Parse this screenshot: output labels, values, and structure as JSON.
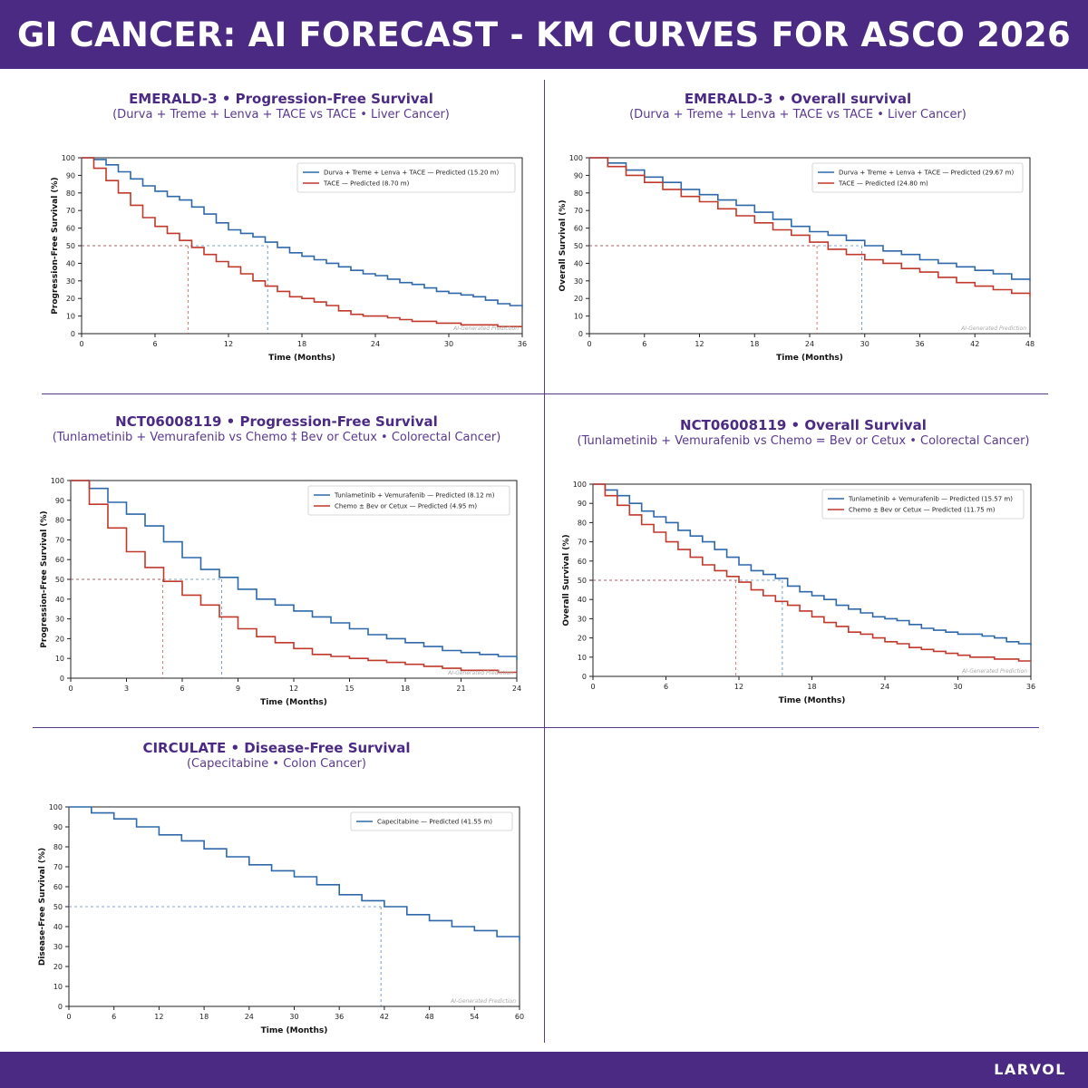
{
  "header": {
    "title": "GI CANCER: AI FORECAST - KM CURVES FOR ASCO 2026"
  },
  "footer": {
    "brand": "LARVOL"
  },
  "colors": {
    "brand": "#4b2a83",
    "series_blue": "#2e68aa",
    "series_red": "#c0392b"
  },
  "watermark": "AI-Generated Prediction",
  "chart_data": [
    {
      "id": "emerald3-pfs",
      "type": "line",
      "title": "EMERALD-3 • Progression-Free Survival",
      "subtitle": "(Durva + Treme + Lenva + TACE vs TACE • Liver Cancer)",
      "xlabel": "Time (Months)",
      "ylabel": "Progression-Free Survival (%)",
      "xlim": [
        0,
        36
      ],
      "ylim": [
        0,
        100
      ],
      "xticks": [
        0,
        6,
        12,
        18,
        24,
        30,
        36
      ],
      "yticks": [
        0,
        10,
        20,
        30,
        40,
        50,
        60,
        70,
        80,
        90,
        100
      ],
      "legend_position": "top-right",
      "series": [
        {
          "name": "Durva + Treme + Lenva + TACE — Predicted (15.20 m)",
          "color": "#2e68aa",
          "median": 15.2,
          "x": [
            0,
            1,
            2,
            3,
            4,
            5,
            6,
            7,
            8,
            9,
            10,
            11,
            12,
            13,
            14,
            15,
            16,
            17,
            18,
            19,
            20,
            21,
            22,
            23,
            24,
            25,
            26,
            27,
            28,
            29,
            30,
            31,
            32,
            33,
            34,
            35,
            36
          ],
          "y": [
            100,
            99,
            96,
            92,
            88,
            84,
            81,
            78,
            76,
            72,
            68,
            63,
            59,
            57,
            55,
            52,
            49,
            46,
            44,
            42,
            40,
            38,
            36,
            34,
            33,
            31,
            29,
            28,
            26,
            24,
            23,
            22,
            21,
            19,
            17,
            16,
            15
          ]
        },
        {
          "name": "TACE — Predicted (8.70 m)",
          "color": "#c0392b",
          "median": 8.7,
          "x": [
            0,
            1,
            2,
            3,
            4,
            5,
            6,
            7,
            8,
            9,
            10,
            11,
            12,
            13,
            14,
            15,
            16,
            17,
            18,
            19,
            20,
            21,
            22,
            23,
            24,
            25,
            26,
            27,
            28,
            29,
            30,
            31,
            32,
            33,
            34,
            35,
            36
          ],
          "y": [
            100,
            94,
            87,
            80,
            73,
            66,
            61,
            57,
            53,
            49,
            45,
            41,
            38,
            34,
            30,
            27,
            24,
            21,
            20,
            18,
            16,
            13,
            11,
            10,
            10,
            9,
            8,
            7,
            7,
            6,
            6,
            5,
            5,
            5,
            4,
            4,
            4
          ]
        }
      ]
    },
    {
      "id": "emerald3-os",
      "type": "line",
      "title": "EMERALD-3 • Overall survival",
      "subtitle": "(Durva + Treme + Lenva + TACE vs TACE • Liver Cancer)",
      "xlabel": "Time (Months)",
      "ylabel": "Overall Survival (%)",
      "xlim": [
        0,
        48
      ],
      "ylim": [
        0,
        100
      ],
      "xticks": [
        0,
        6,
        12,
        18,
        24,
        30,
        36,
        42,
        48
      ],
      "yticks": [
        0,
        10,
        20,
        30,
        40,
        50,
        60,
        70,
        80,
        90,
        100
      ],
      "legend_position": "top-right",
      "series": [
        {
          "name": "Durva + Treme + Lenva + TACE — Predicted (29.67 m)",
          "color": "#2e68aa",
          "median": 29.67,
          "x": [
            0,
            2,
            4,
            6,
            8,
            10,
            12,
            14,
            16,
            18,
            20,
            22,
            24,
            26,
            28,
            30,
            32,
            34,
            36,
            38,
            40,
            42,
            44,
            46,
            48
          ],
          "y": [
            100,
            97,
            93,
            89,
            86,
            82,
            79,
            76,
            73,
            69,
            65,
            61,
            58,
            56,
            53,
            50,
            47,
            45,
            42,
            40,
            38,
            36,
            34,
            31,
            30
          ]
        },
        {
          "name": "TACE — Predicted (24.80 m)",
          "color": "#c0392b",
          "median": 24.8,
          "x": [
            0,
            2,
            4,
            6,
            8,
            10,
            12,
            14,
            16,
            18,
            20,
            22,
            24,
            26,
            28,
            30,
            32,
            34,
            36,
            38,
            40,
            42,
            44,
            46,
            48
          ],
          "y": [
            100,
            95,
            90,
            86,
            82,
            78,
            75,
            71,
            67,
            63,
            59,
            56,
            52,
            48,
            45,
            42,
            40,
            37,
            35,
            32,
            29,
            27,
            25,
            23,
            21
          ]
        }
      ]
    },
    {
      "id": "nct06008119-pfs",
      "type": "line",
      "title": "NCT06008119 • Progression-Free Survival",
      "subtitle": "(Tunlametinib + Vemurafenib vs Chemo ‡ Bev or Cetux • Colorectal Cancer)",
      "xlabel": "Time (Months)",
      "ylabel": "Progression-Free Survival (%)",
      "xlim": [
        0,
        24
      ],
      "ylim": [
        0,
        100
      ],
      "xticks": [
        0,
        3,
        6,
        9,
        12,
        15,
        18,
        21,
        24
      ],
      "yticks": [
        0,
        10,
        20,
        30,
        40,
        50,
        60,
        70,
        80,
        90,
        100
      ],
      "legend_position": "top-right",
      "series": [
        {
          "name": "Tunlametinib + Vemurafenib — Predicted (8.12 m)",
          "color": "#2e68aa",
          "median": 8.12,
          "x": [
            0,
            1,
            2,
            3,
            4,
            5,
            6,
            7,
            8,
            9,
            10,
            11,
            12,
            13,
            14,
            15,
            16,
            17,
            18,
            19,
            20,
            21,
            22,
            23,
            24
          ],
          "y": [
            100,
            96,
            89,
            83,
            77,
            69,
            61,
            55,
            51,
            45,
            40,
            37,
            34,
            31,
            28,
            25,
            22,
            20,
            18,
            16,
            14,
            13,
            12,
            11,
            9
          ]
        },
        {
          "name": "Chemo ± Bev or Cetux — Predicted (4.95 m)",
          "color": "#c0392b",
          "median": 4.95,
          "x": [
            0,
            1,
            2,
            3,
            4,
            5,
            6,
            7,
            8,
            9,
            10,
            11,
            12,
            13,
            14,
            15,
            16,
            17,
            18,
            19,
            20,
            21,
            22,
            23,
            24
          ],
          "y": [
            100,
            88,
            76,
            64,
            56,
            49,
            42,
            37,
            31,
            25,
            21,
            18,
            15,
            12,
            11,
            10,
            9,
            8,
            7,
            6,
            5,
            4,
            4,
            3,
            3
          ]
        }
      ]
    },
    {
      "id": "nct06008119-os",
      "type": "line",
      "title": "NCT06008119 • Overall Survival",
      "subtitle": "(Tunlametinib + Vemurafenib vs Chemo = Bev or Cetux • Colorectal Cancer)",
      "xlabel": "Time (Months)",
      "ylabel": "Overall Survival (%)",
      "xlim": [
        0,
        36
      ],
      "ylim": [
        0,
        100
      ],
      "xticks": [
        0,
        6,
        12,
        18,
        24,
        30,
        36
      ],
      "yticks": [
        0,
        10,
        20,
        30,
        40,
        50,
        60,
        70,
        80,
        90,
        100
      ],
      "legend_position": "top-right",
      "series": [
        {
          "name": "Tunlametinib + Vemurafenib — Predicted (15.57 m)",
          "color": "#2e68aa",
          "median": 15.57,
          "x": [
            0,
            1,
            2,
            3,
            4,
            5,
            6,
            7,
            8,
            9,
            10,
            11,
            12,
            13,
            14,
            15,
            16,
            17,
            18,
            19,
            20,
            21,
            22,
            23,
            24,
            25,
            26,
            27,
            28,
            29,
            30,
            31,
            32,
            33,
            34,
            35,
            36
          ],
          "y": [
            100,
            97,
            94,
            90,
            86,
            83,
            80,
            76,
            73,
            70,
            66,
            62,
            58,
            55,
            53,
            51,
            47,
            44,
            42,
            40,
            37,
            35,
            33,
            31,
            30,
            29,
            27,
            25,
            24,
            23,
            22,
            22,
            21,
            20,
            18,
            17,
            16
          ]
        },
        {
          "name": "Chemo ± Bev or Cetux — Predicted (11.75 m)",
          "color": "#c0392b",
          "median": 11.75,
          "x": [
            0,
            1,
            2,
            3,
            4,
            5,
            6,
            7,
            8,
            9,
            10,
            11,
            12,
            13,
            14,
            15,
            16,
            17,
            18,
            19,
            20,
            21,
            22,
            23,
            24,
            25,
            26,
            27,
            28,
            29,
            30,
            31,
            32,
            33,
            34,
            35,
            36
          ],
          "y": [
            100,
            94,
            89,
            84,
            79,
            75,
            70,
            66,
            62,
            58,
            55,
            52,
            49,
            45,
            42,
            39,
            37,
            34,
            31,
            28,
            26,
            23,
            22,
            20,
            18,
            17,
            15,
            14,
            13,
            12,
            11,
            10,
            10,
            9,
            9,
            8,
            8
          ]
        }
      ]
    },
    {
      "id": "circulate-dfs",
      "type": "line",
      "title": "CIRCULATE • Disease-Free Survival",
      "subtitle": "(Capecitabine • Colon Cancer)",
      "xlabel": "Time (Months)",
      "ylabel": "Disease-Free Survival (%)",
      "xlim": [
        0,
        60
      ],
      "ylim": [
        0,
        100
      ],
      "xticks": [
        0,
        6,
        12,
        18,
        24,
        30,
        36,
        42,
        48,
        54,
        60
      ],
      "yticks": [
        0,
        10,
        20,
        30,
        40,
        50,
        60,
        70,
        80,
        90,
        100
      ],
      "legend_position": "top-right",
      "series": [
        {
          "name": "Capecitabine — Predicted (41.55 m)",
          "color": "#2e68aa",
          "median": 41.55,
          "x": [
            0,
            3,
            6,
            9,
            12,
            15,
            18,
            21,
            24,
            27,
            30,
            33,
            36,
            39,
            42,
            45,
            48,
            51,
            54,
            57,
            60
          ],
          "y": [
            100,
            97,
            94,
            90,
            86,
            83,
            79,
            75,
            71,
            68,
            65,
            61,
            56,
            53,
            50,
            46,
            43,
            40,
            38,
            35,
            33
          ]
        }
      ]
    }
  ]
}
